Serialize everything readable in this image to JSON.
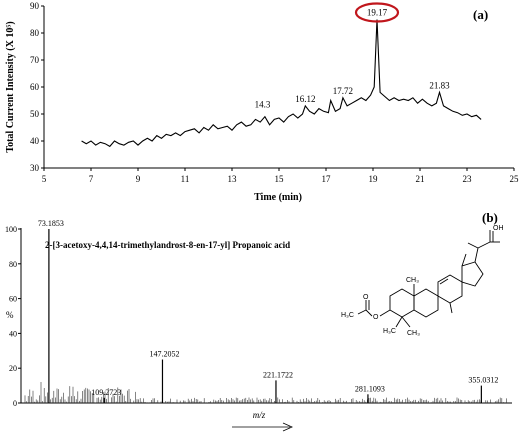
{
  "chart_data": [
    {
      "type": "line",
      "panel_label": "(a)",
      "ylabel": "Total Current Intensity (X 10⁵)",
      "xlabel": "Time (min)",
      "xlim": [
        5,
        25
      ],
      "ylim": [
        30,
        90
      ],
      "x_ticks": [
        5,
        7,
        9,
        11,
        13,
        15,
        17,
        19,
        21,
        23,
        25
      ],
      "y_ticks": [
        30,
        40,
        50,
        60,
        70,
        80,
        90
      ],
      "series": [
        {
          "x": [
            6.6,
            6.8,
            7.0,
            7.2,
            7.4,
            7.6,
            7.8,
            8.0,
            8.2,
            8.4,
            8.6,
            8.8,
            9.0,
            9.2,
            9.4,
            9.6,
            9.8,
            10.0,
            10.2,
            10.4,
            10.6,
            10.8,
            11.0,
            11.2,
            11.4,
            11.6,
            11.8,
            12.0,
            12.2,
            12.4,
            12.6,
            12.8,
            13.0,
            13.2,
            13.4,
            13.6,
            13.8,
            14.0,
            14.2,
            14.4,
            14.6,
            14.8,
            15.0,
            15.2,
            15.4,
            15.6,
            15.8,
            16.0,
            16.12,
            16.3,
            16.5,
            16.7,
            16.9,
            17.1,
            17.2,
            17.4,
            17.6,
            17.72,
            17.9,
            18.1,
            18.3,
            18.5,
            18.7,
            18.9,
            19.05,
            19.17,
            19.3,
            19.5,
            19.7,
            19.9,
            20.1,
            20.3,
            20.5,
            20.7,
            20.9,
            21.1,
            21.3,
            21.5,
            21.7,
            21.83,
            22.0,
            22.2,
            22.4,
            22.6,
            22.8,
            23.0,
            23.2,
            23.4,
            23.6
          ],
          "y": [
            40,
            39,
            40,
            38.5,
            39.5,
            39,
            38,
            40,
            39,
            38.5,
            39.5,
            40,
            38.5,
            40,
            41,
            40,
            42,
            41,
            42.5,
            42,
            43,
            42,
            43.5,
            44,
            44.5,
            43,
            45,
            44,
            46,
            44.5,
            45,
            45.5,
            44,
            46,
            47,
            45.5,
            46,
            48,
            47,
            49,
            46,
            48,
            48.5,
            47,
            49,
            50,
            48.5,
            50,
            53,
            51,
            50,
            52,
            51,
            50.5,
            55,
            51,
            52,
            56,
            53,
            54,
            55,
            56,
            55,
            57,
            60,
            85,
            58,
            56.5,
            55,
            56,
            55,
            55.5,
            55,
            56,
            54,
            55.5,
            54,
            53,
            54,
            58,
            53,
            52,
            51,
            50.5,
            49.5,
            50,
            49,
            49.5,
            48
          ]
        }
      ],
      "annotations": [
        {
          "x": 14.3,
          "y": 51,
          "label": "14.3"
        },
        {
          "x": 16.12,
          "y": 53,
          "label": "16.12"
        },
        {
          "x": 17.72,
          "y": 56,
          "label": "17.72"
        },
        {
          "x": 19.17,
          "y": 85,
          "label": "19.17"
        },
        {
          "x": 21.83,
          "y": 58,
          "label": "21.83"
        }
      ]
    },
    {
      "type": "bar",
      "panel_label": "(b)",
      "ylabel": "%",
      "xlabel": "m/z",
      "title": "2-[3-acetoxy-4,4,14-trimethylandrost-8-en-17-yl] Propanoic acid",
      "x_range_text": "low to high m/z",
      "y_ticks": [
        0,
        20,
        40,
        60,
        80,
        100
      ],
      "ylim": [
        0,
        100
      ],
      "peaks": [
        {
          "mz": 73.1853,
          "intensity": 100,
          "label": "73.1853"
        },
        {
          "mz": 147.2052,
          "intensity": 25,
          "label": "147.2052"
        },
        {
          "mz": 109.2723,
          "intensity": 3,
          "label": "109.2723"
        },
        {
          "mz": 221.1722,
          "intensity": 13,
          "label": "221.1722"
        },
        {
          "mz": 281.1093,
          "intensity": 5,
          "label": "281.1093"
        },
        {
          "mz": 355.0312,
          "intensity": 10,
          "label": "355.0312"
        }
      ],
      "structure_labels": {
        "oh": "OH",
        "o": "O",
        "h3c_a": "H₃C",
        "h3c_b": "H₃C",
        "ch3": "CH₃",
        "ch3_b": "CH₃"
      }
    }
  ]
}
